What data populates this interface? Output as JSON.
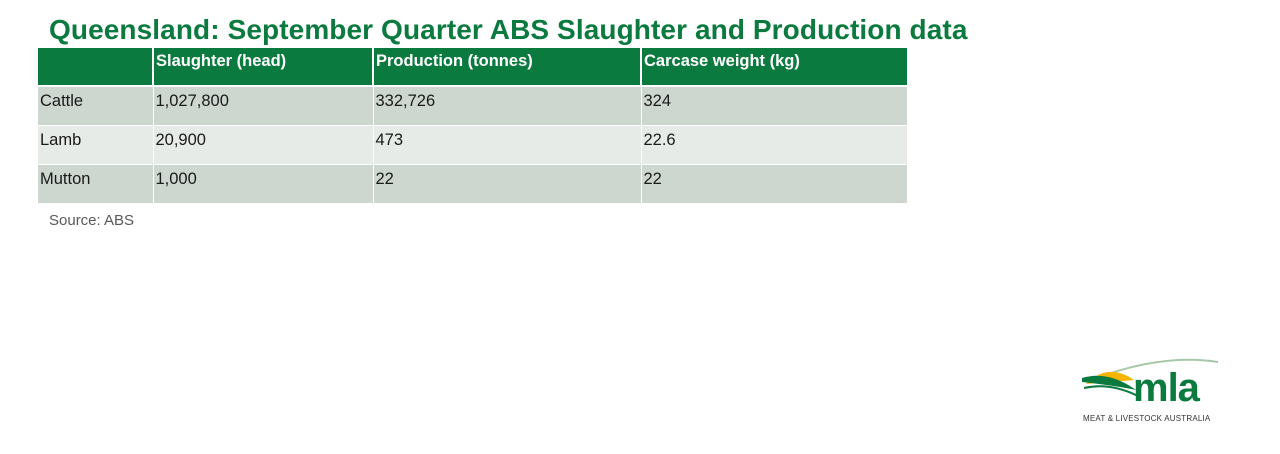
{
  "title": "Queensland: September Quarter ABS Slaughter and Production data",
  "table": {
    "headers": [
      "",
      "Slaughter (head)",
      "Production (tonnes)",
      "Carcase weight (kg)"
    ],
    "rows": [
      {
        "label": "Cattle",
        "slaughter": "1,027,800",
        "production": "332,726",
        "carcase": "324"
      },
      {
        "label": "Lamb",
        "slaughter": "20,900",
        "production": "473",
        "carcase": "22.6"
      },
      {
        "label": "Mutton",
        "slaughter": "1,000",
        "production": "22",
        "carcase": "22"
      }
    ]
  },
  "source": "Source: ABS",
  "logo": {
    "text": "mla",
    "subtitle": "MEAT & LIVESTOCK AUSTRALIA"
  },
  "colors": {
    "brand_green": "#0b7a3e",
    "logo_yellow": "#f5b400",
    "row_dark": "#cdd6cf",
    "row_light": "#e6ebe7"
  }
}
